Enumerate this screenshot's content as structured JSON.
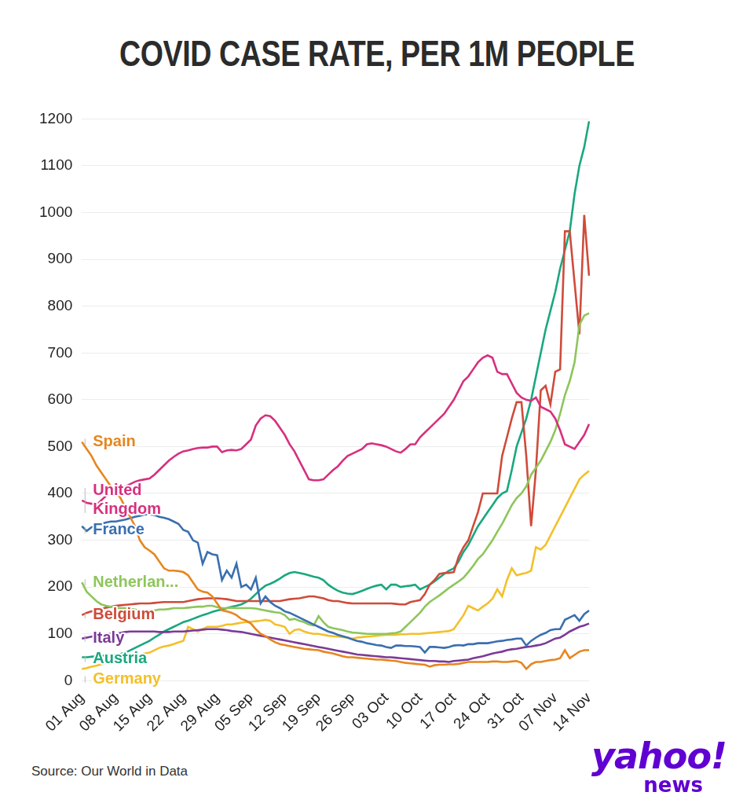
{
  "chart_data": {
    "type": "line",
    "title": "COVID CASE RATE, PER 1M PEOPLE",
    "source": "Source: Our World in Data",
    "logo": [
      "yahoo!",
      "news"
    ],
    "categories": [
      "01 Aug",
      null,
      null,
      null,
      null,
      null,
      null,
      "08 Aug",
      null,
      null,
      null,
      null,
      null,
      null,
      "15 Aug",
      null,
      null,
      null,
      null,
      null,
      null,
      "22 Aug",
      null,
      null,
      null,
      null,
      null,
      null,
      "29 Aug",
      null,
      null,
      null,
      null,
      null,
      null,
      "05 Sep",
      null,
      null,
      null,
      null,
      null,
      null,
      "12 Sep",
      null,
      null,
      null,
      null,
      null,
      null,
      "19 Sep",
      null,
      null,
      null,
      null,
      null,
      null,
      "26 Sep",
      null,
      null,
      null,
      null,
      null,
      null,
      "03 Oct",
      null,
      null,
      null,
      null,
      null,
      null,
      "10 Oct",
      null,
      null,
      null,
      null,
      null,
      null,
      "17 Oct",
      null,
      null,
      null,
      null,
      null,
      null,
      "24 Oct",
      null,
      null,
      null,
      null,
      null,
      null,
      "31 Oct",
      null,
      null,
      null,
      null,
      null,
      null,
      "07 Nov",
      null,
      null,
      null,
      null,
      null,
      null,
      "14 Nov"
    ],
    "series": [
      {
        "name": "Spain",
        "color": "#e6861f",
        "values": [
          510,
          495,
          480,
          460,
          445,
          430,
          415,
          405,
          390,
          370,
          350,
          330,
          300,
          285,
          278,
          270,
          255,
          240,
          235,
          235,
          234,
          232,
          225,
          210,
          195,
          190,
          188,
          180,
          165,
          150,
          148,
          145,
          140,
          132,
          128,
          122,
          110,
          100,
          95,
          88,
          82,
          78,
          76,
          74,
          72,
          70,
          68,
          67,
          66,
          65,
          62,
          60,
          58,
          55,
          52,
          50,
          50,
          49,
          48,
          47,
          46,
          45,
          45,
          44,
          43,
          42,
          40,
          38,
          37,
          36,
          35,
          34,
          30,
          33,
          34,
          34,
          35,
          35,
          36,
          38,
          40,
          40,
          40,
          40,
          40,
          41,
          41,
          40,
          40,
          41,
          42,
          38,
          25,
          35,
          40,
          40,
          42,
          44,
          45,
          48,
          65,
          48,
          55,
          62,
          65,
          65
        ]
      },
      {
        "name": "United Kingdom",
        "color": "#d6307f",
        "values": [
          385,
          380,
          378,
          375,
          385,
          395,
          400,
          405,
          410,
          415,
          420,
          425,
          428,
          430,
          432,
          440,
          450,
          460,
          470,
          478,
          485,
          490,
          492,
          495,
          497,
          498,
          498,
          500,
          500,
          488,
          492,
          493,
          492,
          495,
          505,
          515,
          545,
          560,
          567,
          565,
          555,
          540,
          525,
          505,
          490,
          470,
          450,
          430,
          428,
          428,
          430,
          440,
          450,
          458,
          470,
          480,
          485,
          490,
          495,
          505,
          507,
          505,
          503,
          500,
          495,
          490,
          487,
          495,
          505,
          505,
          520,
          530,
          540,
          550,
          560,
          570,
          585,
          600,
          620,
          640,
          650,
          665,
          680,
          690,
          695,
          690,
          660,
          655,
          655,
          635,
          615,
          605,
          600,
          598,
          605,
          585,
          580,
          575,
          560,
          535,
          505,
          500,
          495,
          510,
          525,
          548
        ]
      },
      {
        "name": "France",
        "color": "#3a6fb0",
        "values": [
          330,
          320,
          328,
          330,
          335,
          338,
          340,
          340,
          342,
          344,
          347,
          350,
          352,
          355,
          355,
          354,
          350,
          348,
          345,
          340,
          335,
          322,
          318,
          300,
          295,
          250,
          275,
          270,
          268,
          215,
          235,
          220,
          250,
          200,
          205,
          195,
          220,
          165,
          180,
          168,
          160,
          155,
          148,
          145,
          140,
          135,
          130,
          125,
          120,
          115,
          110,
          105,
          102,
          98,
          95,
          92,
          88,
          85,
          83,
          80,
          78,
          76,
          75,
          72,
          70,
          75,
          75,
          74,
          74,
          73,
          72,
          60,
          72,
          72,
          71,
          70,
          72,
          75,
          76,
          75,
          78,
          78,
          80,
          80,
          80,
          82,
          84,
          85,
          87,
          88,
          90,
          90,
          75,
          85,
          92,
          98,
          102,
          108,
          110,
          110,
          130,
          135,
          140,
          128,
          142,
          150
        ]
      },
      {
        "name": "Netherlan...",
        "color": "#8dc65b",
        "values": [
          210,
          190,
          180,
          170,
          163,
          160,
          158,
          156,
          155,
          155,
          153,
          152,
          150,
          150,
          150,
          150,
          152,
          152,
          153,
          155,
          155,
          155,
          156,
          157,
          158,
          158,
          160,
          160,
          157,
          155,
          155,
          156,
          155,
          155,
          155,
          155,
          154,
          152,
          150,
          148,
          146,
          145,
          140,
          130,
          132,
          128,
          125,
          120,
          118,
          138,
          125,
          115,
          112,
          110,
          108,
          105,
          103,
          102,
          101,
          100,
          100,
          100,
          100,
          100,
          101,
          102,
          105,
          115,
          125,
          135,
          145,
          158,
          168,
          175,
          182,
          190,
          198,
          205,
          212,
          220,
          232,
          245,
          260,
          270,
          285,
          300,
          318,
          335,
          355,
          375,
          390,
          400,
          415,
          440,
          455,
          470,
          490,
          510,
          535,
          570,
          610,
          640,
          680,
          760,
          780,
          785
        ]
      },
      {
        "name": "Belgium",
        "color": "#cf4b3a",
        "values": [
          140,
          145,
          148,
          150,
          153,
          156,
          158,
          160,
          161,
          162,
          163,
          164,
          165,
          165,
          165,
          166,
          167,
          168,
          168,
          168,
          168,
          168,
          170,
          172,
          174,
          175,
          176,
          176,
          176,
          175,
          174,
          172,
          170,
          170,
          170,
          170,
          170,
          170,
          170,
          170,
          170,
          170,
          172,
          174,
          175,
          176,
          178,
          180,
          180,
          178,
          176,
          172,
          170,
          170,
          168,
          166,
          165,
          165,
          165,
          165,
          165,
          165,
          165,
          165,
          165,
          164,
          163,
          163,
          168,
          170,
          172,
          185,
          205,
          215,
          228,
          230,
          230,
          232,
          265,
          285,
          300,
          330,
          360,
          400,
          400,
          400,
          400,
          480,
          520,
          560,
          595,
          595,
          480,
          330,
          450,
          620,
          630,
          590,
          660,
          665,
          960,
          960,
          850,
          740,
          995,
          865
        ]
      },
      {
        "name": "Italy",
        "color": "#7b3a96",
        "values": [
          90,
          92,
          94,
          96,
          98,
          100,
          100,
          100,
          102,
          104,
          105,
          105,
          105,
          105,
          105,
          105,
          104,
          104,
          104,
          105,
          105,
          105,
          106,
          107,
          108,
          109,
          110,
          110,
          110,
          109,
          108,
          106,
          105,
          104,
          102,
          100,
          98,
          96,
          94,
          92,
          90,
          88,
          86,
          84,
          82,
          80,
          78,
          76,
          74,
          72,
          70,
          68,
          66,
          64,
          62,
          60,
          58,
          56,
          55,
          54,
          53,
          52,
          51,
          50,
          50,
          49,
          48,
          47,
          46,
          45,
          44,
          43,
          42,
          42,
          41,
          41,
          40,
          42,
          43,
          44,
          45,
          48,
          50,
          52,
          55,
          58,
          60,
          62,
          65,
          67,
          68,
          70,
          72,
          73,
          75,
          77,
          80,
          85,
          90,
          92,
          98,
          105,
          110,
          115,
          118,
          122
        ]
      },
      {
        "name": "Austria",
        "color": "#1aa77f",
        "values": [
          50,
          50,
          51,
          52,
          53,
          54,
          55,
          55,
          57,
          60,
          65,
          70,
          75,
          80,
          85,
          92,
          98,
          105,
          110,
          115,
          120,
          125,
          128,
          132,
          136,
          140,
          143,
          147,
          150,
          152,
          155,
          158,
          160,
          163,
          168,
          175,
          185,
          195,
          203,
          207,
          212,
          218,
          225,
          230,
          232,
          230,
          228,
          225,
          222,
          220,
          215,
          205,
          198,
          192,
          188,
          186,
          185,
          188,
          192,
          196,
          200,
          203,
          205,
          195,
          205,
          205,
          200,
          202,
          203,
          205,
          195,
          200,
          205,
          212,
          220,
          228,
          235,
          240,
          255,
          275,
          290,
          310,
          330,
          345,
          360,
          375,
          390,
          400,
          405,
          450,
          500,
          530,
          560,
          600,
          650,
          700,
          750,
          790,
          830,
          880,
          920,
          960,
          1040,
          1100,
          1140,
          1195
        ]
      },
      {
        "name": "Germany",
        "color": "#f3c02b",
        "values": [
          25,
          27,
          30,
          32,
          35,
          38,
          40,
          40,
          43,
          46,
          50,
          53,
          55,
          58,
          60,
          65,
          70,
          73,
          75,
          78,
          82,
          85,
          115,
          110,
          105,
          110,
          115,
          115,
          115,
          117,
          120,
          120,
          122,
          124,
          125,
          126,
          127,
          128,
          130,
          128,
          120,
          118,
          115,
          100,
          108,
          110,
          105,
          102,
          100,
          100,
          98,
          96,
          95,
          94,
          93,
          92,
          90,
          92,
          93,
          94,
          95,
          96,
          97,
          98,
          98,
          98,
          99,
          99,
          100,
          100,
          100,
          101,
          102,
          103,
          104,
          105,
          106,
          110,
          125,
          140,
          160,
          155,
          150,
          158,
          165,
          175,
          195,
          180,
          215,
          240,
          225,
          228,
          230,
          235,
          285,
          280,
          290,
          310,
          330,
          350,
          370,
          390,
          410,
          430,
          440,
          448
        ]
      }
    ],
    "ylim": [
      0,
      1200
    ],
    "yticks": [
      0,
      100,
      200,
      300,
      400,
      500,
      600,
      700,
      800,
      900,
      1000,
      1100,
      1200
    ],
    "grid": true
  }
}
